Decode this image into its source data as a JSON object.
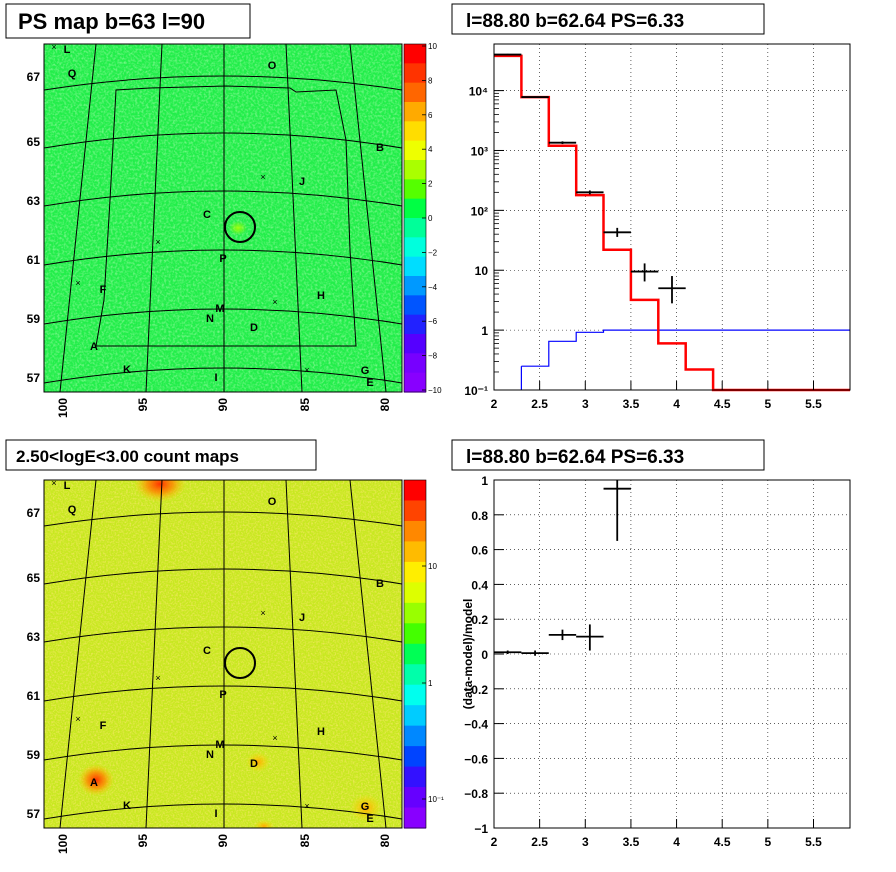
{
  "panels": {
    "tl_title": "PS map b=63 l=90",
    "tr_title": "l=88.80 b=62.64 PS=6.33",
    "bl_title": "2.50<logE<3.00 count maps",
    "br_title": "l=88.80 b=62.64 PS=6.33"
  },
  "map_ticks": {
    "lat": [
      "67",
      "65",
      "63",
      "61",
      "59",
      "57"
    ],
    "lon": [
      "100",
      "95",
      "90",
      "85",
      "80"
    ]
  },
  "source_labels": [
    "L",
    "Q",
    "O",
    "B",
    "J",
    "C",
    "P",
    "F",
    "H",
    "M",
    "N",
    "D",
    "A",
    "K",
    "I",
    "G",
    "E"
  ],
  "colorbar_top": {
    "ticks": [
      "10",
      "8",
      "6",
      "4",
      "2",
      "0",
      "−2",
      "−4",
      "−6",
      "−8",
      "−10"
    ],
    "colors": [
      "#ff0000",
      "#ff3300",
      "#ff6600",
      "#ffaa00",
      "#ffdd00",
      "#eeff00",
      "#aaff00",
      "#55ff00",
      "#00ff44",
      "#00ff99",
      "#00ffdd",
      "#00ddff",
      "#0099ff",
      "#0055ff",
      "#2222ff",
      "#5500ff",
      "#7700ff",
      "#8800ff"
    ]
  },
  "colorbar_bottom": {
    "ticks": [
      "10",
      "1",
      "10⁻¹"
    ],
    "colors": [
      "#ff0000",
      "#ff4400",
      "#ff8800",
      "#ffbb00",
      "#ffee00",
      "#ddff00",
      "#99ff00",
      "#44ff00",
      "#00ff55",
      "#00ffaa",
      "#00ffee",
      "#00ccff",
      "#0088ff",
      "#0044ff",
      "#3311ff",
      "#6600ff",
      "#8800ff"
    ]
  },
  "chart_data": [
    {
      "type": "line",
      "subtype": "step-histogram",
      "title": "l=88.80 b=62.64 PS=6.33",
      "x_scale": "linear",
      "y_scale": "log",
      "xlim": [
        2.0,
        5.9
      ],
      "ylim": [
        0.1,
        60000
      ],
      "x_ticks": [
        "2",
        "2.5",
        "3",
        "3.5",
        "4",
        "4.5",
        "5",
        "5.5"
      ],
      "y_ticks": [
        "10⁻¹",
        "1",
        "10",
        "10²",
        "10³",
        "10⁴"
      ],
      "grid": true,
      "series": [
        {
          "style": "red-step",
          "color": "#ff0000",
          "bin_edges": [
            2.0,
            2.3,
            2.6,
            2.9,
            3.2,
            3.5,
            3.8,
            4.1,
            4.4,
            5.9
          ],
          "values": [
            38000,
            7800,
            1200,
            180,
            22,
            3.2,
            0.6,
            0.22,
            0.1
          ]
        },
        {
          "style": "blue-step",
          "color": "#0000ff",
          "bin_edges": [
            2.3,
            2.6,
            2.9,
            3.2,
            3.5,
            5.9
          ],
          "values": [
            0.25,
            0.65,
            0.92,
            1.0,
            1.0
          ]
        },
        {
          "style": "black-points",
          "color": "#000000",
          "points": [
            {
              "x": 2.15,
              "y": 40000,
              "xerr": 0.15,
              "ylo": 39000,
              "yhi": 41000
            },
            {
              "x": 2.45,
              "y": 7800,
              "xerr": 0.15,
              "ylo": 7600,
              "yhi": 8000
            },
            {
              "x": 2.75,
              "y": 1350,
              "xerr": 0.15,
              "ylo": 1280,
              "yhi": 1420
            },
            {
              "x": 3.05,
              "y": 200,
              "xerr": 0.15,
              "ylo": 185,
              "yhi": 215
            },
            {
              "x": 3.35,
              "y": 43,
              "xerr": 0.15,
              "ylo": 36,
              "yhi": 51
            },
            {
              "x": 3.65,
              "y": 9.5,
              "xerr": 0.15,
              "ylo": 6.5,
              "yhi": 13
            },
            {
              "x": 3.95,
              "y": 5.0,
              "xerr": 0.15,
              "ylo": 2.8,
              "yhi": 8.0
            }
          ]
        }
      ]
    },
    {
      "type": "scatter",
      "title": "l=88.80 b=62.64 PS=6.33",
      "ylabel": "(data-model)/model",
      "xlim": [
        2.0,
        5.9
      ],
      "ylim": [
        -1.0,
        1.0
      ],
      "x_ticks": [
        "2",
        "2.5",
        "3",
        "3.5",
        "4",
        "4.5",
        "5",
        "5.5"
      ],
      "y_ticks": [
        "−1",
        "−0.8",
        "−0.6",
        "−0.4",
        "−0.2",
        "0",
        "0.2",
        "0.4",
        "0.6",
        "0.8",
        "1"
      ],
      "grid": true,
      "series": [
        {
          "style": "black-points",
          "points": [
            {
              "x": 2.15,
              "y": 0.01,
              "xerr": 0.15,
              "ylo": 0.0,
              "yhi": 0.02
            },
            {
              "x": 2.45,
              "y": 0.005,
              "xerr": 0.15,
              "ylo": -0.01,
              "yhi": 0.02
            },
            {
              "x": 2.75,
              "y": 0.11,
              "xerr": 0.15,
              "ylo": 0.08,
              "yhi": 0.14
            },
            {
              "x": 3.05,
              "y": 0.1,
              "xerr": 0.15,
              "ylo": 0.02,
              "yhi": 0.17
            },
            {
              "x": 3.35,
              "y": 0.95,
              "xerr": 0.15,
              "ylo": 0.65,
              "yhi": 1.0
            }
          ]
        }
      ]
    }
  ]
}
